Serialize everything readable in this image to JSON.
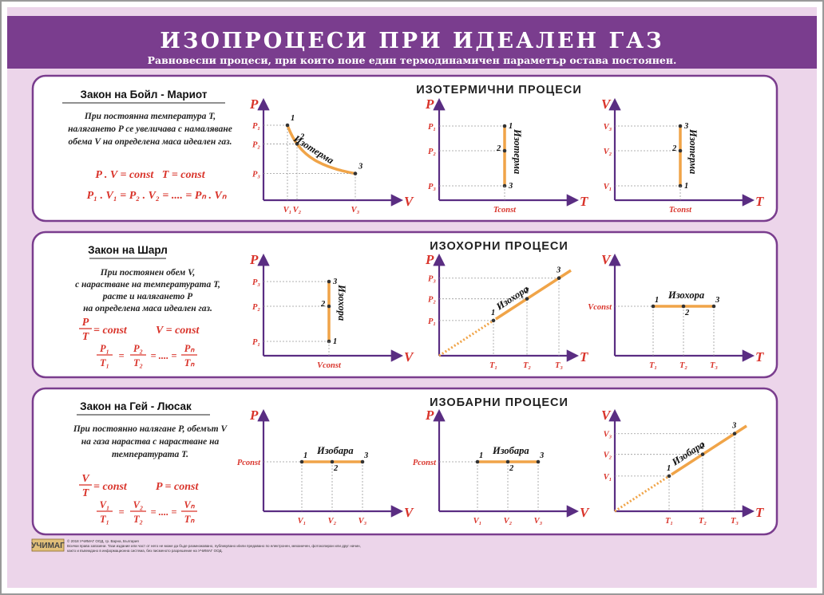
{
  "header": {
    "title": "ИЗОПРОЦЕСИ ПРИ ИДЕАЛЕН ГАЗ",
    "subtitle": "Равновесни процеси, при които поне един термодинамичен параметър остава постоянен."
  },
  "colors": {
    "purple": "#7a3d8e",
    "pink_bg": "#ecd5ea",
    "axis": "#5a2d82",
    "line": "#f0a448",
    "red": "#d9342b"
  },
  "sections": [
    {
      "title": "ИЗОТЕРМИЧНИ ПРОЦЕСИ",
      "law_title": "Закон на Бойл - Мариот",
      "law_lines": [
        "При постоянна температура T,",
        "налягането P се увеличава с намаляване",
        "обема V на определена маса идеален газ."
      ],
      "formula1": "P . V = const   T = const",
      "formula2": "P₁ . V₁ = P₂ . V₂ = .... = Pₙ . Vₙ",
      "graphs": [
        {
          "kind": "hyperbola",
          "ylabel": "P",
          "xlabel": "V",
          "yticks": [
            "P₁",
            "P₂",
            "P₃"
          ],
          "xticks": [
            "V₁",
            "V₂",
            "V₃"
          ],
          "points": [
            "1",
            "2",
            "3"
          ],
          "curve_label": "Изотерма"
        },
        {
          "kind": "vertical",
          "ylabel": "P",
          "xlabel": "T",
          "yticks": [
            "P₁",
            "P₂",
            "P₃"
          ],
          "xconst": "Tconst",
          "points": [
            "1",
            "2",
            "3"
          ],
          "curve_label": "Изотерма"
        },
        {
          "kind": "vertical",
          "ylabel": "V",
          "xlabel": "T",
          "yticks": [
            "V₃",
            "V₂",
            "V₁"
          ],
          "xconst": "Tconst",
          "points": [
            "3",
            "2",
            "1"
          ],
          "curve_label": "Изотерма"
        }
      ]
    },
    {
      "title": "ИЗОХОРНИ ПРОЦЕСИ",
      "law_title": "Закон на Шарл",
      "law_lines": [
        "При постоянен обем V,",
        "с нарастване на температурата T,",
        "расте и налягането P",
        "на определена маса идеален газ."
      ],
      "fracs": [
        {
          "num": "P",
          "den": "T",
          "rhs": "= const"
        },
        {
          "text": "V = const"
        }
      ],
      "chain": [
        {
          "num": "P₁",
          "den": "T₁"
        },
        {
          "num": "P₂",
          "den": "T₂"
        },
        {
          "num": "Pₙ",
          "den": "Tₙ"
        }
      ],
      "graphs": [
        {
          "kind": "vertical",
          "ylabel": "P",
          "xlabel": "V",
          "yticks": [
            "P₃",
            "P₂",
            "P₁"
          ],
          "xconst": "Vconst",
          "points": [
            "3",
            "2",
            "1"
          ],
          "curve_label": "Изохора"
        },
        {
          "kind": "diagonal",
          "ylabel": "P",
          "xlabel": "T",
          "yticks": [
            "P₃",
            "P₂",
            "P₁"
          ],
          "xticks": [
            "T₁",
            "T₂",
            "T₃"
          ],
          "points": [
            "1",
            "2",
            "3"
          ],
          "curve_label": "Изохора"
        },
        {
          "kind": "horizontal",
          "ylabel": "V",
          "xlabel": "T",
          "yconst": "Vconst",
          "xticks": [
            "T₁",
            "T₂",
            "T₃"
          ],
          "points": [
            "1",
            "2",
            "3"
          ],
          "curve_label": "Изохора"
        }
      ]
    },
    {
      "title": "ИЗОБАРНИ ПРОЦЕСИ",
      "law_title": "Закон на Гей - Люсак",
      "law_lines": [
        "При постоянно налягане P, обемът V",
        "на газа нараства с нарастване на",
        "температурата T."
      ],
      "fracs": [
        {
          "num": "V",
          "den": "T",
          "rhs": "= const"
        },
        {
          "text": "P = const"
        }
      ],
      "chain": [
        {
          "num": "V₁",
          "den": "T₁"
        },
        {
          "num": "V₂",
          "den": "T₂"
        },
        {
          "num": "Vₙ",
          "den": "Tₙ"
        }
      ],
      "graphs": [
        {
          "kind": "horizontal",
          "ylabel": "P",
          "xlabel": "V",
          "yconst": "Pconst",
          "xticks": [
            "V₁",
            "V₂",
            "V₃"
          ],
          "points": [
            "1",
            "2",
            "3"
          ],
          "curve_label": "Изобара"
        },
        {
          "kind": "horizontal",
          "ylabel": "P",
          "xlabel": "V",
          "yconst": "Pconst",
          "xticks": [
            "V₁",
            "V₂",
            "V₃"
          ],
          "points": [
            "1",
            "2",
            "3"
          ],
          "curve_label": "Изобара"
        },
        {
          "kind": "diagonal",
          "ylabel": "V",
          "xlabel": "T",
          "yticks": [
            "V₃",
            "V₂",
            "V₁"
          ],
          "xticks": [
            "T₁",
            "T₂",
            "T₃"
          ],
          "points": [
            "1",
            "2",
            "3"
          ],
          "curve_label": "Изобара"
        }
      ]
    }
  ],
  "chain_sep": "= .... =",
  "footer": {
    "logo": "УЧИМАГ",
    "line1": "© 2018 УЧИМАГ ООД, гр. Варна, България",
    "line2": "Всички права запазени. Тази издание или част от него не може да бъде размножавано, публикувано и/или предавано по електронен, механичен, фотокопиран или друг начин,",
    "line3": "както и въвеждано в информационна система, без писменото разрешение на УЧИМАГ ООД."
  }
}
